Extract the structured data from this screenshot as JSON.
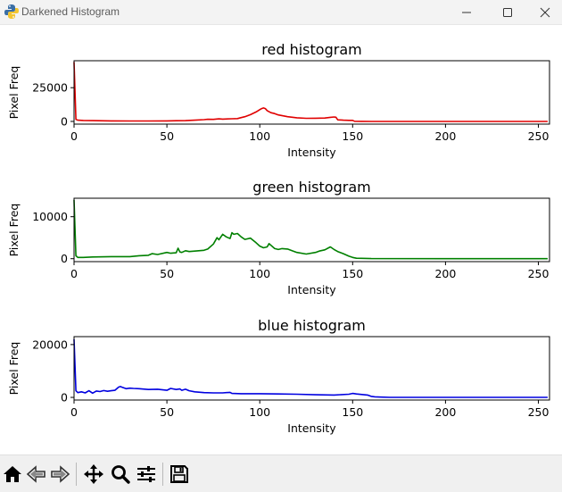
{
  "window": {
    "title": "Darkened Histogram",
    "minimize_icon": "minimize-icon",
    "maximize_icon": "maximize-icon",
    "close_icon": "close-icon"
  },
  "toolbar": {
    "tools": [
      {
        "name": "home",
        "icon": "home-icon"
      },
      {
        "name": "back",
        "icon": "back-arrow-icon"
      },
      {
        "name": "forward",
        "icon": "forward-arrow-icon"
      },
      {
        "name": "pan",
        "icon": "move-icon"
      },
      {
        "name": "zoom",
        "icon": "magnifier-icon"
      },
      {
        "name": "configure-subplots",
        "icon": "sliders-icon"
      },
      {
        "name": "save",
        "icon": "floppy-disk-icon"
      }
    ]
  },
  "chart_data": [
    {
      "type": "line",
      "title": "red histogram",
      "xlabel": "Intensity",
      "ylabel": "Pixel Freq",
      "xlim": [
        0,
        256
      ],
      "ylim": [
        -2000,
        45000
      ],
      "xticks": [
        0,
        50,
        100,
        150,
        200,
        250
      ],
      "yticks": [
        0,
        25000
      ],
      "yticklabels": [
        "0",
        "25000"
      ],
      "color": "#e00000",
      "x": [
        0,
        1,
        2,
        5,
        10,
        20,
        30,
        40,
        50,
        55,
        60,
        65,
        70,
        72,
        75,
        78,
        80,
        85,
        88,
        90,
        92,
        95,
        98,
        100,
        101,
        102,
        103,
        104,
        105,
        106,
        108,
        110,
        115,
        120,
        125,
        130,
        135,
        138,
        140,
        141,
        142,
        145,
        148,
        150,
        151,
        155,
        160,
        200,
        255
      ],
      "y": [
        44000,
        1500,
        900,
        700,
        600,
        400,
        300,
        300,
        400,
        500,
        600,
        900,
        1300,
        1600,
        1500,
        1900,
        1700,
        2000,
        2100,
        2800,
        3500,
        5000,
        7000,
        8700,
        9500,
        10000,
        9500,
        8000,
        7200,
        6500,
        5800,
        4800,
        3500,
        2700,
        2300,
        2400,
        2500,
        3000,
        3300,
        3100,
        1200,
        900,
        800,
        800,
        150,
        50,
        0,
        0,
        0
      ]
    },
    {
      "type": "line",
      "title": "green histogram",
      "xlabel": "Intensity",
      "ylabel": "Pixel Freq",
      "xlim": [
        0,
        256
      ],
      "ylim": [
        -700,
        14400
      ],
      "xticks": [
        0,
        50,
        100,
        150,
        200,
        250
      ],
      "yticks": [
        0,
        10000
      ],
      "yticklabels": [
        "0",
        "10000"
      ],
      "color": "#008000",
      "x": [
        0,
        1,
        2,
        5,
        10,
        20,
        30,
        35,
        40,
        42,
        45,
        50,
        52,
        55,
        56,
        57,
        58,
        60,
        62,
        65,
        70,
        72,
        75,
        77,
        78,
        80,
        82,
        84,
        85,
        86,
        88,
        90,
        92,
        95,
        98,
        100,
        102,
        104,
        105,
        108,
        110,
        112,
        115,
        118,
        120,
        125,
        130,
        132,
        135,
        138,
        140,
        142,
        145,
        148,
        150,
        152,
        160,
        200,
        255
      ],
      "y": [
        14000,
        700,
        300,
        300,
        400,
        500,
        500,
        700,
        800,
        1200,
        1000,
        1500,
        1300,
        1400,
        2500,
        1600,
        1500,
        1900,
        1700,
        1800,
        2000,
        2300,
        3500,
        5000,
        4500,
        5800,
        5200,
        4800,
        6200,
        5800,
        6000,
        5200,
        4600,
        4900,
        3800,
        3000,
        2600,
        2800,
        3600,
        2400,
        2200,
        2400,
        2300,
        1800,
        1500,
        1100,
        1500,
        1800,
        2100,
        2800,
        2200,
        1700,
        1200,
        600,
        300,
        100,
        20,
        0,
        0
      ]
    },
    {
      "type": "line",
      "title": "blue histogram",
      "xlabel": "Intensity",
      "ylabel": "Pixel Freq",
      "xlim": [
        0,
        256
      ],
      "ylim": [
        -1000,
        23000
      ],
      "xticks": [
        0,
        50,
        100,
        150,
        200,
        250
      ],
      "yticks": [
        0,
        20000
      ],
      "yticklabels": [
        "0",
        "20000"
      ],
      "color": "#0000e0",
      "x": [
        0,
        1,
        2,
        4,
        6,
        8,
        10,
        12,
        14,
        16,
        18,
        20,
        22,
        24,
        25,
        26,
        28,
        30,
        32,
        35,
        40,
        45,
        50,
        52,
        55,
        57,
        58,
        60,
        62,
        65,
        70,
        75,
        80,
        84,
        85,
        90,
        100,
        110,
        120,
        130,
        140,
        148,
        150,
        152,
        155,
        158,
        160,
        162,
        165,
        170,
        200,
        255
      ],
      "y": [
        22000,
        2500,
        1800,
        2100,
        1700,
        2500,
        1600,
        2400,
        2200,
        2600,
        2300,
        2500,
        2700,
        3900,
        4100,
        3800,
        3300,
        3500,
        3400,
        3300,
        3000,
        3100,
        2700,
        3400,
        3000,
        3200,
        2700,
        3100,
        2500,
        2100,
        1800,
        1700,
        1700,
        1900,
        1500,
        1400,
        1400,
        1300,
        1200,
        1000,
        900,
        1200,
        1500,
        1300,
        1100,
        900,
        400,
        200,
        100,
        0,
        0,
        0
      ]
    }
  ]
}
